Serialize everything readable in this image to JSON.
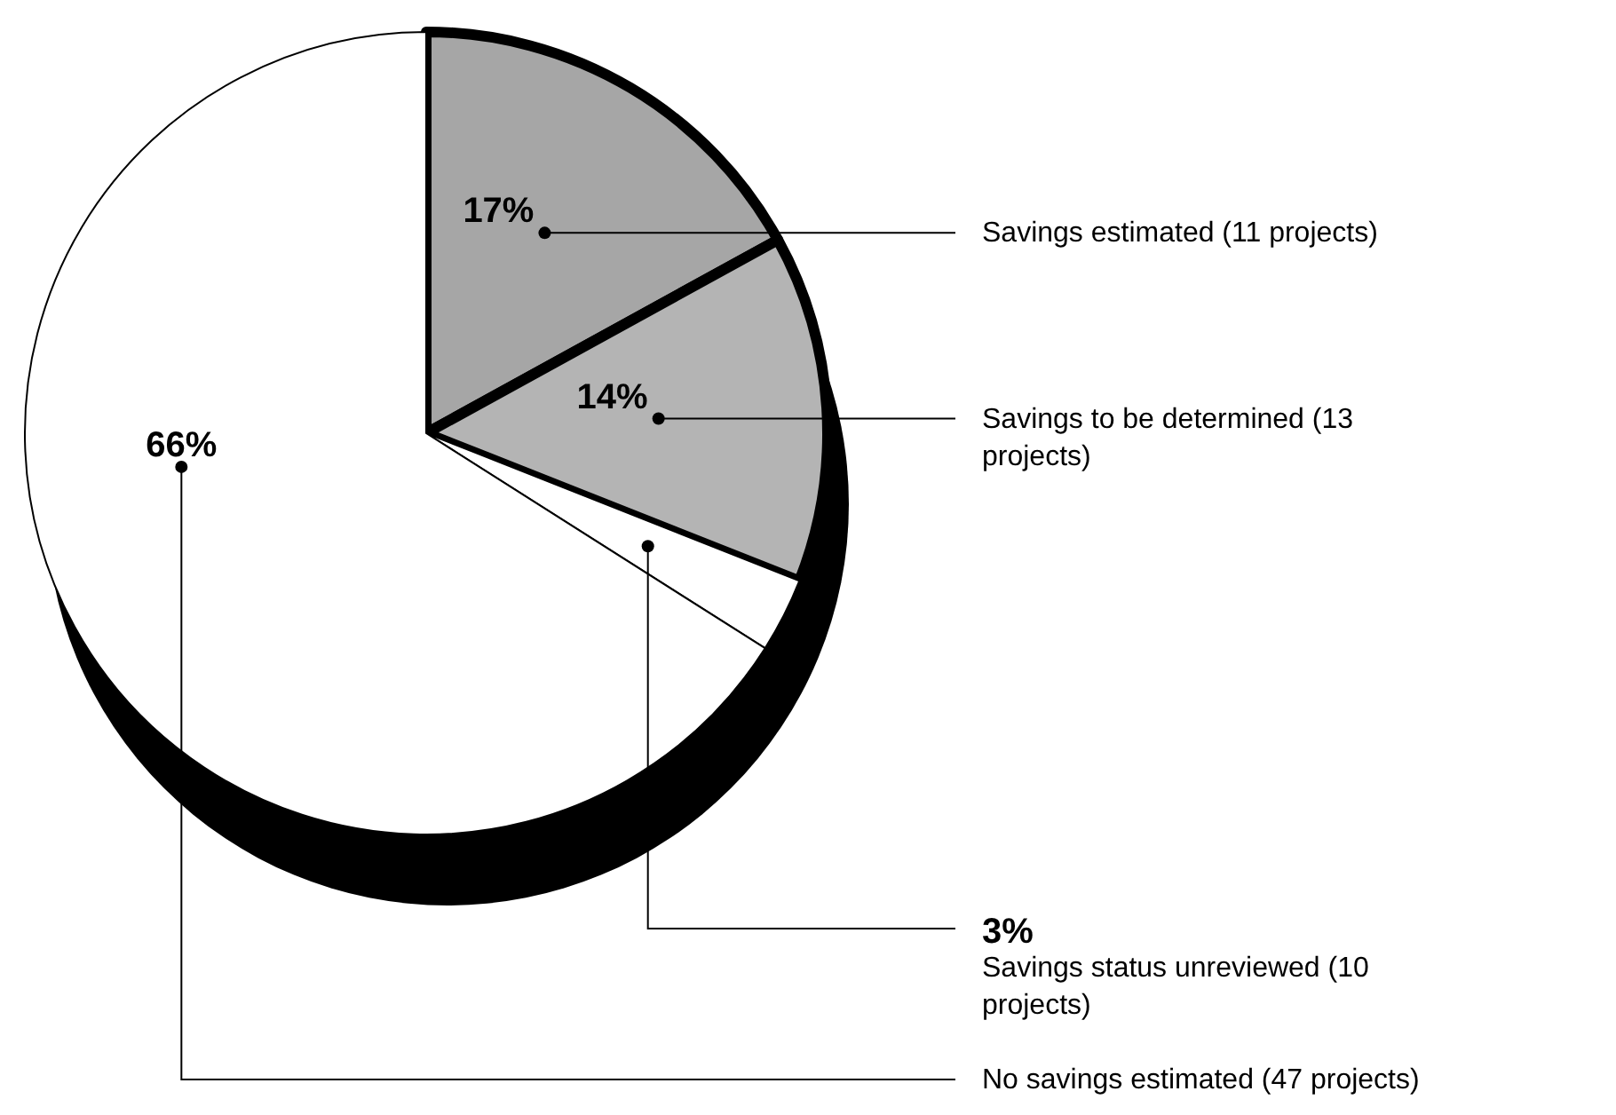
{
  "chart_data": {
    "type": "pie",
    "categories": [
      "Savings estimated (11 projects)",
      "Savings to be determined (13 projects)",
      "Savings status unreviewed (10 projects)",
      "No savings estimated (47 projects)"
    ],
    "values": [
      17,
      14,
      3,
      66
    ],
    "colors": [
      "#a6a6a6",
      "#b4b4b4",
      "#ffffff",
      "#ffffff"
    ],
    "value_labels": [
      "17%",
      "14%",
      "3%",
      "66%"
    ]
  }
}
